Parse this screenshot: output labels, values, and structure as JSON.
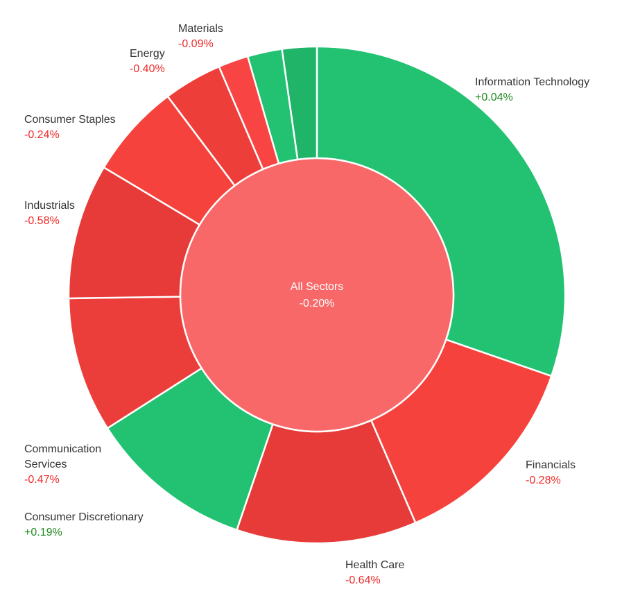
{
  "chart_data": {
    "type": "sunburst",
    "center": {
      "name": "All Sectors",
      "change": "-0.20%",
      "color": "#f86868"
    },
    "series": [
      {
        "name": "Information Technology",
        "change": "+0.04%",
        "weight": 31.0,
        "color": "#22c272"
      },
      {
        "name": "Financials",
        "change": "-0.28%",
        "weight": 13.5,
        "color": "#f5423d"
      },
      {
        "name": "Health Care",
        "change": "-0.64%",
        "weight": 12.0,
        "color": "#e63b38"
      },
      {
        "name": "Consumer Discretionary",
        "change": "+0.19%",
        "weight": 11.0,
        "color": "#22c272"
      },
      {
        "name": "Communication Services",
        "change": "-0.47%",
        "weight": 9.0,
        "color": "#eb3d39"
      },
      {
        "name": "Industrials",
        "change": "-0.58%",
        "weight": 9.0,
        "color": "#e63b38"
      },
      {
        "name": "Consumer Staples",
        "change": "-0.24%",
        "weight": 6.3,
        "color": "#f5423d"
      },
      {
        "name": "Energy",
        "change": "-0.40%",
        "weight": 3.9,
        "color": "#ee3e3a"
      },
      {
        "name": "Materials",
        "change": "-0.09%",
        "weight": 2.0,
        "color": "#f94444"
      },
      {
        "name": "",
        "change": "",
        "weight": 2.3,
        "color": "#22c272"
      },
      {
        "name": "",
        "change": "",
        "weight": 2.3,
        "color": "#1fb468"
      }
    ]
  }
}
